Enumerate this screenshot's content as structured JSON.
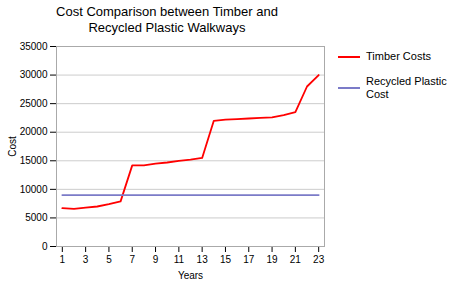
{
  "chart_data": {
    "type": "line",
    "title": "Cost Comparison between Timber and\nRecycled Plastic Walkways",
    "xlabel": "Years",
    "ylabel": "Cost",
    "x": [
      1,
      2,
      3,
      4,
      5,
      6,
      7,
      8,
      9,
      10,
      11,
      12,
      13,
      14,
      15,
      16,
      17,
      18,
      19,
      20,
      21,
      22,
      23
    ],
    "series": [
      {
        "name": "Timber Costs",
        "color": "#FF0000",
        "values": [
          6700,
          6600,
          6800,
          7000,
          7400,
          7900,
          14200,
          14200,
          14500,
          14700,
          15000,
          15200,
          15500,
          22000,
          22200,
          22300,
          22400,
          22500,
          22600,
          23000,
          23500,
          28000,
          30000
        ]
      },
      {
        "name": "Recycled Plastic\nCost",
        "color": "#7B7BC8",
        "values": [
          9000,
          9000,
          9000,
          9000,
          9000,
          9000,
          9000,
          9000,
          9000,
          9000,
          9000,
          9000,
          9000,
          9000,
          9000,
          9000,
          9000,
          9000,
          9000,
          9000,
          9000,
          9000,
          9000
        ]
      }
    ],
    "xlim": [
      0.5,
      23.5
    ],
    "xticks": [
      1,
      3,
      5,
      7,
      9,
      11,
      13,
      15,
      17,
      19,
      21,
      23
    ],
    "ylim": [
      0,
      35000
    ],
    "yticks": [
      0,
      5000,
      10000,
      15000,
      20000,
      25000,
      30000,
      35000
    ],
    "grid": "y",
    "legend": "right"
  }
}
